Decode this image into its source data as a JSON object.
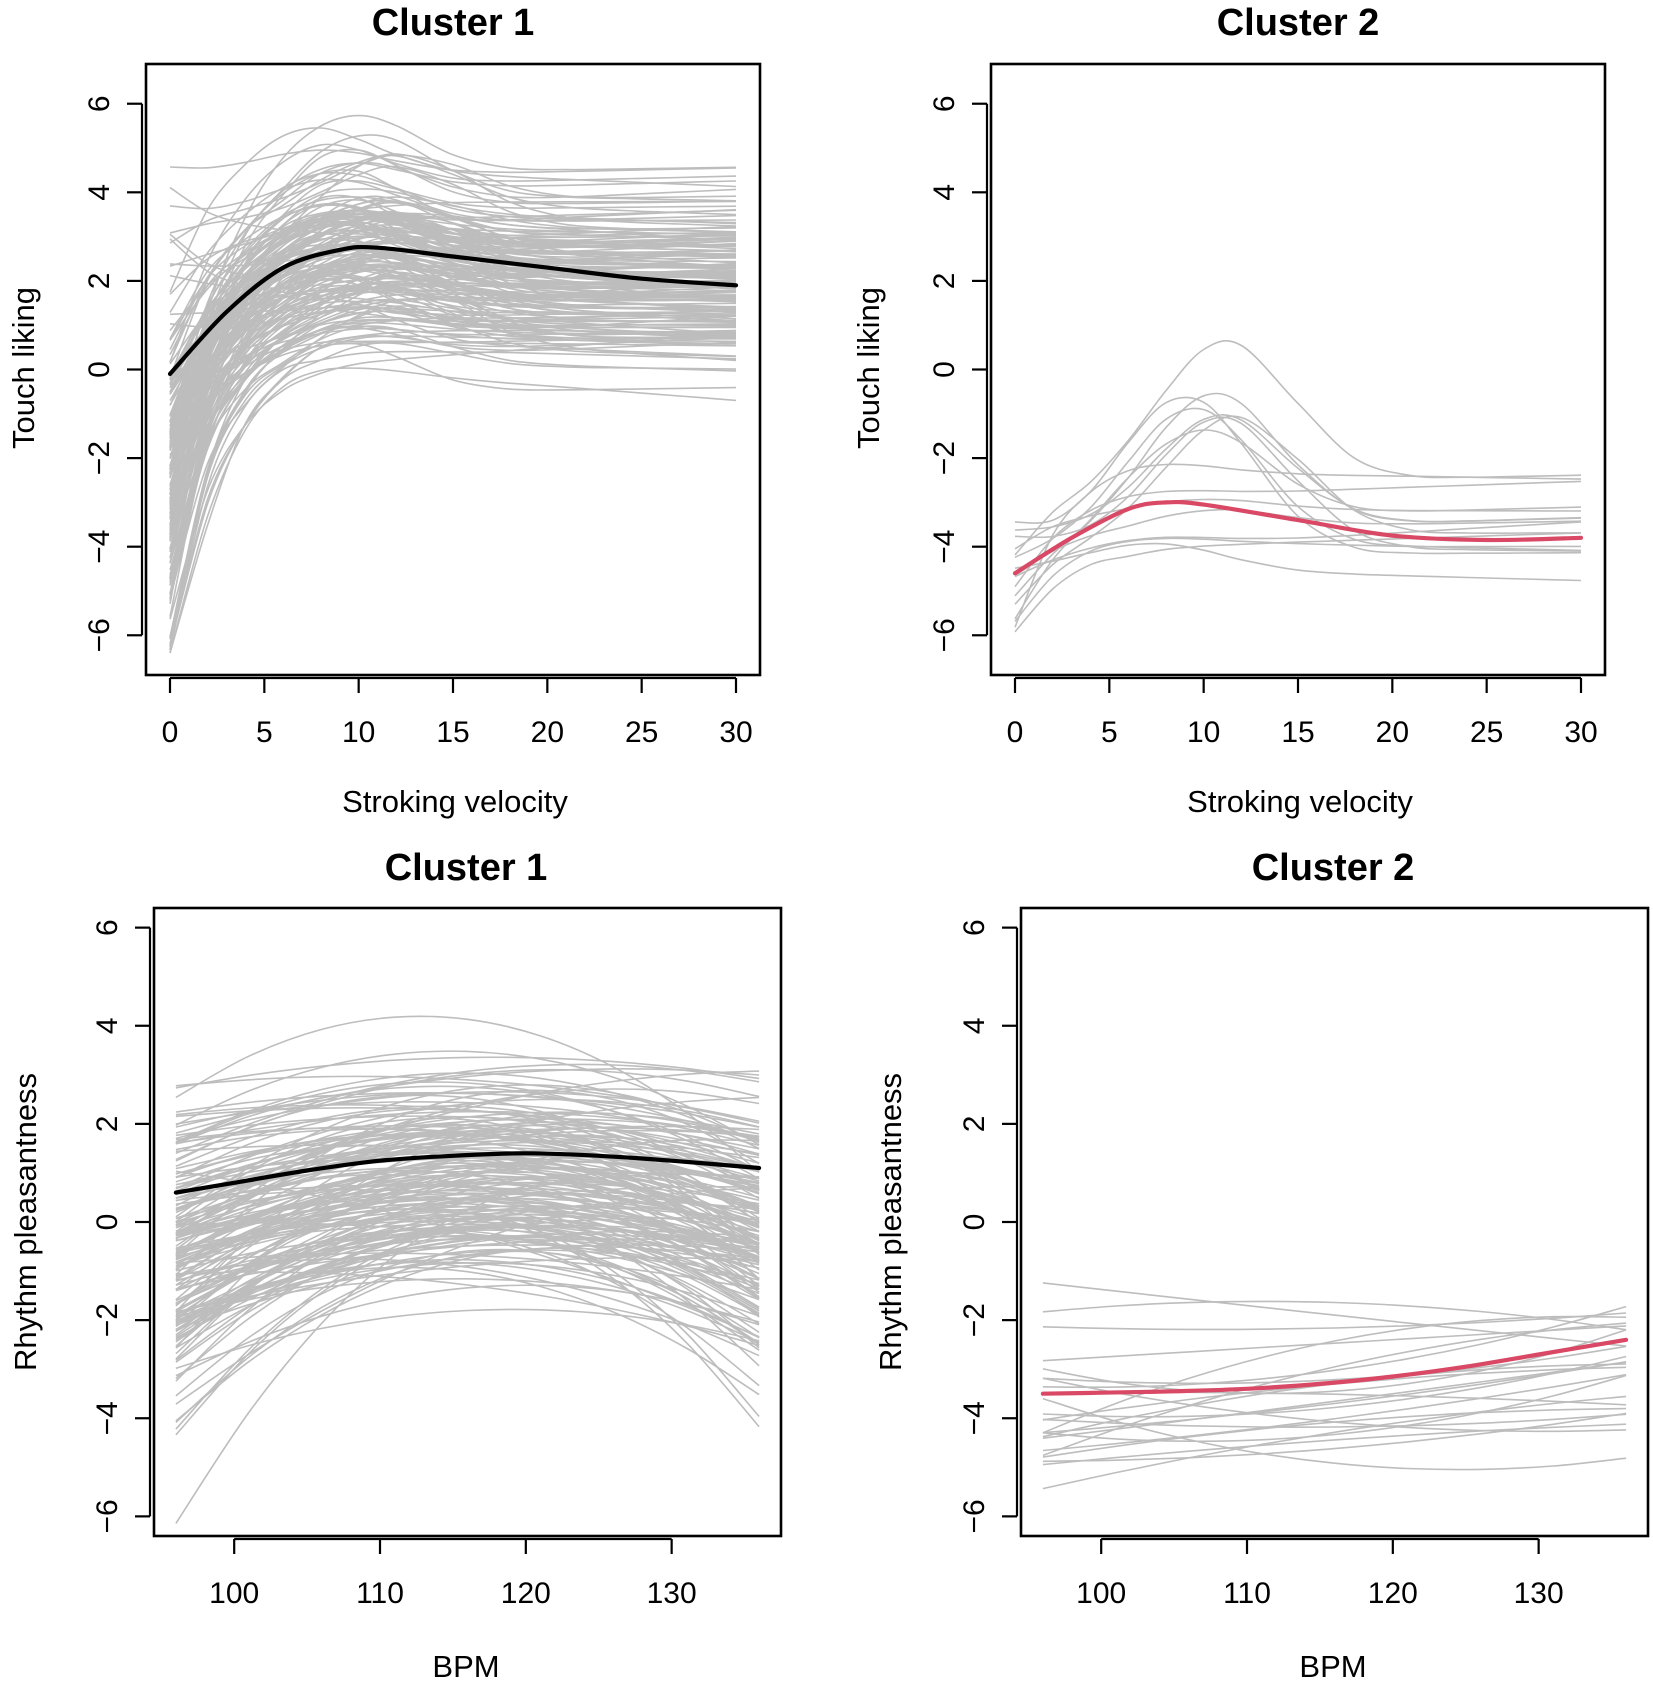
{
  "chart_data": [
    {
      "type": "line",
      "title": "Cluster 1",
      "xlabel": "Stroking velocity",
      "ylabel": "Touch liking",
      "xlim": [
        0,
        30
      ],
      "ylim": [
        -6.4,
        6.4
      ],
      "xticks": [
        0,
        5,
        10,
        15,
        20,
        25,
        30
      ],
      "yticks": [
        -6,
        -4,
        -2,
        0,
        2,
        4,
        6
      ],
      "mean_color": "#000000",
      "individual_color": "#bdbdbd",
      "individual_count": 180,
      "mean": {
        "x": [
          0,
          3,
          6,
          9,
          11,
          15,
          20,
          25,
          30
        ],
        "y": [
          -0.1,
          1.3,
          2.3,
          2.7,
          2.75,
          2.55,
          2.3,
          2.05,
          1.9
        ]
      }
    },
    {
      "type": "line",
      "title": "Cluster 2",
      "xlabel": "Stroking velocity",
      "ylabel": "Touch liking",
      "xlim": [
        0,
        30
      ],
      "ylim": [
        -6.4,
        6.4
      ],
      "xticks": [
        0,
        5,
        10,
        15,
        20,
        25,
        30
      ],
      "yticks": [
        -6,
        -4,
        -2,
        0,
        2,
        4,
        6
      ],
      "mean_color": "#d94865",
      "individual_color": "#bdbdbd",
      "individual_count": 16,
      "mean": {
        "x": [
          0,
          3,
          6,
          8,
          10,
          15,
          20,
          25,
          30
        ],
        "y": [
          -4.6,
          -3.8,
          -3.15,
          -3.0,
          -3.05,
          -3.4,
          -3.75,
          -3.85,
          -3.8
        ]
      }
    },
    {
      "type": "line",
      "title": "Cluster 1",
      "xlabel": "BPM",
      "ylabel": "Rhythm pleasantness",
      "xlim": [
        94.5,
        137.5
      ],
      "ylim": [
        -6.4,
        6.4
      ],
      "xticks": [
        100,
        110,
        120,
        130
      ],
      "yticks": [
        -6,
        -4,
        -2,
        0,
        2,
        4,
        6
      ],
      "mean_color": "#000000",
      "individual_color": "#bdbdbd",
      "individual_count": 180,
      "mean": {
        "x": [
          96,
          100,
          105,
          110,
          115,
          120,
          125,
          130,
          136
        ],
        "y": [
          0.6,
          0.8,
          1.05,
          1.25,
          1.35,
          1.4,
          1.35,
          1.25,
          1.1
        ]
      }
    },
    {
      "type": "line",
      "title": "Cluster 2",
      "xlabel": "BPM",
      "ylabel": "Rhythm pleasantness",
      "xlim": [
        94.5,
        137.5
      ],
      "ylim": [
        -6.4,
        6.4
      ],
      "xticks": [
        100,
        110,
        120,
        130
      ],
      "yticks": [
        -6,
        -4,
        -2,
        0,
        2,
        4,
        6
      ],
      "mean_color": "#d94865",
      "individual_color": "#bdbdbd",
      "individual_count": 24,
      "mean": {
        "x": [
          96,
          100,
          105,
          110,
          115,
          120,
          125,
          130,
          136
        ],
        "y": [
          -3.5,
          -3.48,
          -3.45,
          -3.4,
          -3.3,
          -3.15,
          -2.95,
          -2.7,
          -2.4
        ]
      }
    }
  ]
}
